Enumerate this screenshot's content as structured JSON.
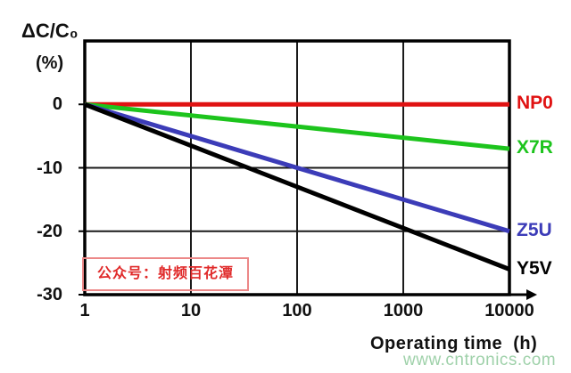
{
  "page": {
    "background": "#ffffff"
  },
  "chart": {
    "y_axis_title": "ΔC/C₀",
    "y_axis_unit": "(%)"
  },
  "chart_data": {
    "type": "line",
    "title": "",
    "xlabel": "Operating time  (h)",
    "ylabel": "ΔC/C₀ (%)",
    "x_scale": "log",
    "x_range": [
      1,
      10000
    ],
    "y_range": [
      -30,
      10
    ],
    "x_ticks": [
      1,
      10,
      100,
      1000,
      10000
    ],
    "y_ticks": [
      0,
      -10,
      -20,
      -30
    ],
    "grid": true,
    "grid_color": "#1a1a1a",
    "axis_color": "#000000",
    "legend_position": "right-of-plot",
    "series": [
      {
        "name": "NP0",
        "color": "#e01212",
        "x": [
          1,
          10000
        ],
        "values": [
          0,
          0
        ]
      },
      {
        "name": "X7R",
        "color": "#1dc41d",
        "x": [
          1,
          10000
        ],
        "values": [
          0,
          -7
        ]
      },
      {
        "name": "Z5U",
        "color": "#3c3cb8",
        "x": [
          1,
          10000
        ],
        "values": [
          0,
          -20
        ]
      },
      {
        "name": "Y5V",
        "color": "#000000",
        "x": [
          1,
          10000
        ],
        "values": [
          0,
          -26
        ]
      }
    ]
  },
  "overlays": {
    "stamp_text": "公众号：射频百花潭",
    "stamp_text_color": "#e02a2a",
    "stamp_border_color": "#ec8888",
    "watermark_text": "www.cntronics.com",
    "watermark_color": "#8fca9c"
  }
}
